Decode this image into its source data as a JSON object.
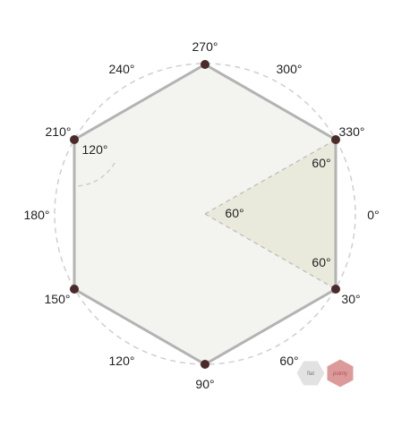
{
  "vertex_labels": {
    "v270": "270°",
    "v330": "330°",
    "v30": "30°",
    "v90": "90°",
    "v150": "150°",
    "v210": "210°"
  },
  "outer_labels": {
    "a300": "300°",
    "a0": "0°",
    "a60": "60°",
    "a120": "120°",
    "a180": "180°",
    "a240": "240°"
  },
  "angle_labels": {
    "interior_210": "120°",
    "tri_top": "60°",
    "tri_bottom": "60°",
    "tri_center": "60°"
  },
  "buttons": {
    "flat": "flat",
    "pointy": "pointy"
  },
  "colors": {
    "hexagon_fill": "#f3f3ef",
    "hexagon_stroke": "#b3b3b3",
    "triangle_fill": "#eaeadc",
    "vertex_dot": "#4a2a2a",
    "flat_button": "#e2e2e2",
    "pointy_button": "#dd9a9a"
  }
}
